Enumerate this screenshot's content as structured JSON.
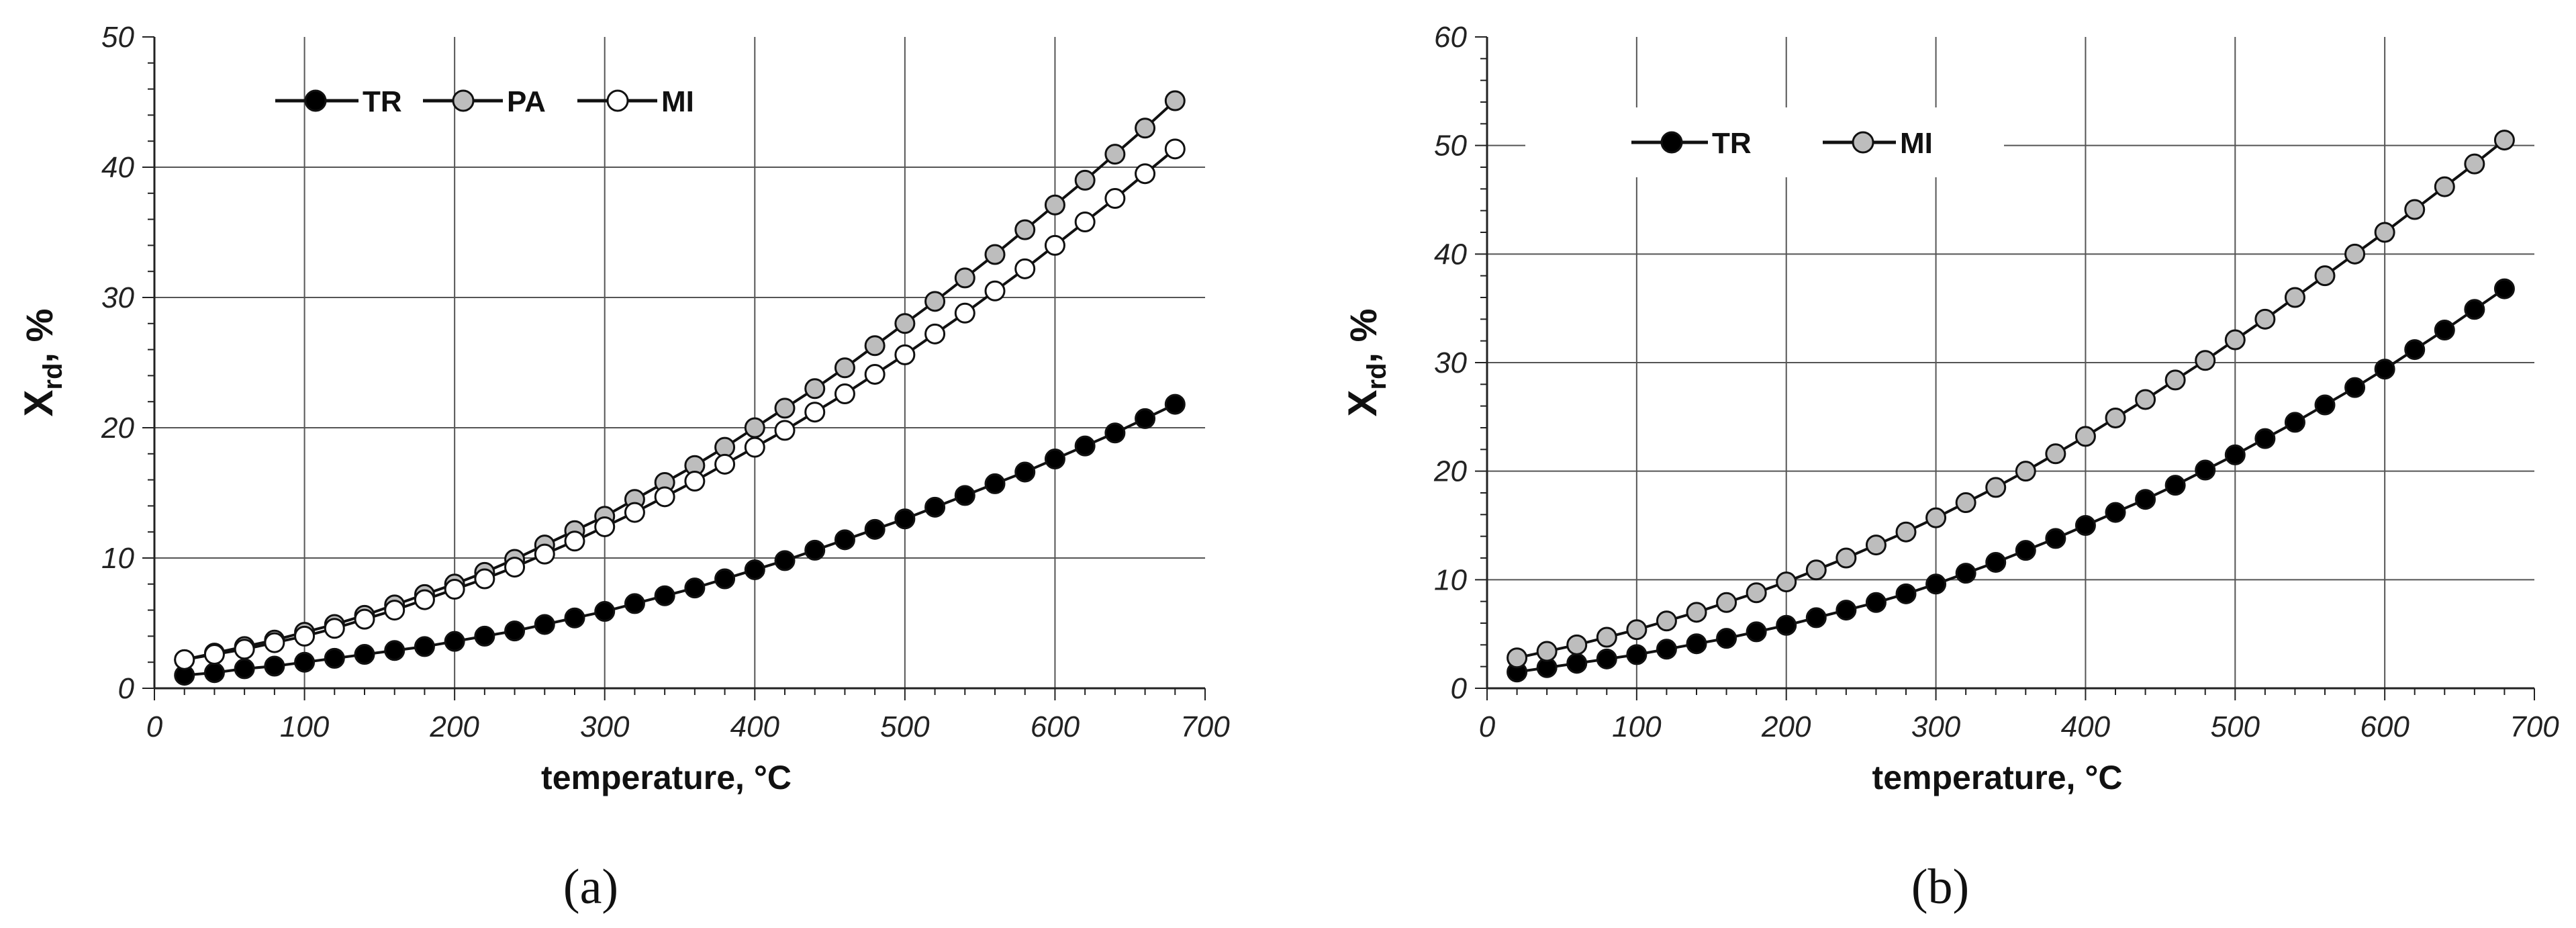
{
  "chart_data": [
    {
      "type": "line",
      "panel_label": "(a)",
      "xlabel": "temperature, °C",
      "ylabel_main": "X",
      "ylabel_sub": "rd",
      "ylabel_suffix": ", %",
      "xlim": [
        0,
        700
      ],
      "ylim": [
        0,
        50
      ],
      "xticks": [
        0,
        100,
        200,
        300,
        400,
        500,
        600,
        700
      ],
      "yticks": [
        0,
        10,
        20,
        30,
        40,
        50
      ],
      "grid": true,
      "legend_position": "top-left",
      "x": [
        20,
        40,
        60,
        80,
        100,
        120,
        140,
        160,
        180,
        200,
        220,
        240,
        260,
        280,
        300,
        320,
        340,
        360,
        380,
        400,
        420,
        440,
        460,
        480,
        500,
        520,
        540,
        560,
        580,
        600,
        620,
        640,
        660,
        680
      ],
      "series": [
        {
          "name": "TR",
          "marker_fill": "#000000",
          "values": [
            1.0,
            1.2,
            1.5,
            1.7,
            2.0,
            2.3,
            2.6,
            2.9,
            3.2,
            3.6,
            4.0,
            4.4,
            4.9,
            5.4,
            5.9,
            6.5,
            7.1,
            7.7,
            8.4,
            9.1,
            9.8,
            10.6,
            11.4,
            12.2,
            13.0,
            13.9,
            14.8,
            15.7,
            16.6,
            17.6,
            18.6,
            19.6,
            20.7,
            21.8
          ]
        },
        {
          "name": "PA",
          "marker_fill": "#bdbdbd",
          "values": [
            2.2,
            2.7,
            3.2,
            3.7,
            4.3,
            4.9,
            5.6,
            6.4,
            7.2,
            8.0,
            8.9,
            9.9,
            11.0,
            12.1,
            13.2,
            14.5,
            15.8,
            17.1,
            18.5,
            20.0,
            21.5,
            23.0,
            24.6,
            26.3,
            28.0,
            29.7,
            31.5,
            33.3,
            35.2,
            37.1,
            39.0,
            41.0,
            43.0,
            45.1
          ]
        },
        {
          "name": "MI",
          "marker_fill": "#ffffff",
          "values": [
            2.2,
            2.6,
            3.0,
            3.5,
            4.0,
            4.6,
            5.3,
            6.0,
            6.8,
            7.6,
            8.4,
            9.3,
            10.3,
            11.3,
            12.4,
            13.5,
            14.7,
            15.9,
            17.2,
            18.5,
            19.8,
            21.2,
            22.6,
            24.1,
            25.6,
            27.2,
            28.8,
            30.5,
            32.2,
            34.0,
            35.8,
            37.6,
            39.5,
            41.4
          ]
        }
      ]
    },
    {
      "type": "line",
      "panel_label": "(b)",
      "xlabel": "temperature, °C",
      "ylabel_main": "X",
      "ylabel_sub": "rd",
      "ylabel_suffix": ", %",
      "xlim": [
        0,
        700
      ],
      "ylim": [
        0,
        60
      ],
      "xticks": [
        0,
        100,
        200,
        300,
        400,
        500,
        600,
        700
      ],
      "yticks": [
        0,
        10,
        20,
        30,
        40,
        50,
        60
      ],
      "grid": true,
      "legend_position": "top-left",
      "x": [
        20,
        40,
        60,
        80,
        100,
        120,
        140,
        160,
        180,
        200,
        220,
        240,
        260,
        280,
        300,
        320,
        340,
        360,
        380,
        400,
        420,
        440,
        460,
        480,
        500,
        520,
        540,
        560,
        580,
        600,
        620,
        640,
        660,
        680
      ],
      "series": [
        {
          "name": "TR",
          "marker_fill": "#000000",
          "values": [
            1.5,
            1.9,
            2.3,
            2.7,
            3.1,
            3.6,
            4.1,
            4.6,
            5.2,
            5.8,
            6.5,
            7.2,
            7.9,
            8.7,
            9.6,
            10.6,
            11.6,
            12.7,
            13.8,
            15.0,
            16.2,
            17.4,
            18.7,
            20.1,
            21.5,
            23.0,
            24.5,
            26.1,
            27.7,
            29.4,
            31.2,
            33.0,
            34.9,
            36.8
          ]
        },
        {
          "name": "MI",
          "marker_fill": "#bdbdbd",
          "values": [
            2.8,
            3.4,
            4.0,
            4.7,
            5.4,
            6.2,
            7.0,
            7.9,
            8.8,
            9.8,
            10.9,
            12.0,
            13.2,
            14.4,
            15.7,
            17.1,
            18.5,
            20.0,
            21.6,
            23.2,
            24.9,
            26.6,
            28.4,
            30.2,
            32.1,
            34.0,
            36.0,
            38.0,
            40.0,
            42.0,
            44.1,
            46.2,
            48.3,
            50.5
          ]
        }
      ]
    }
  ]
}
